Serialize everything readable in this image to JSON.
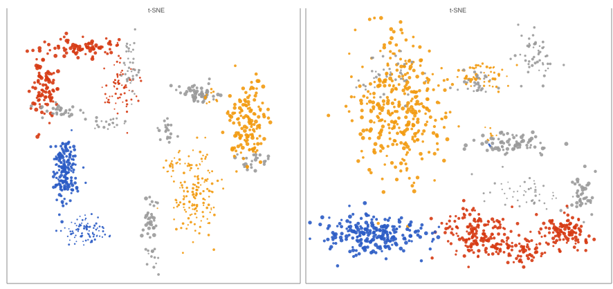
{
  "colors": {
    "red": "#d63a12",
    "blue": "#2a5bc4",
    "orange": "#f29a0f",
    "gray": "#9a9a9a"
  },
  "chart_data": [
    {
      "type": "scatter",
      "title": "t-SNE",
      "xlabel": "",
      "ylabel": "",
      "xlim": [
        0,
        100
      ],
      "ylim": [
        0,
        100
      ],
      "grid": false,
      "series": [
        {
          "color": "red",
          "clusters": [
            {
              "cx": 12,
              "cy": 72,
              "sx": 2.5,
              "sy": 6,
              "n": 90,
              "size": 2.2
            },
            {
              "cx": 24,
              "cy": 89,
              "sx": 7,
              "sy": 1.8,
              "n": 80,
              "size": 2.2
            },
            {
              "cx": 38,
              "cy": 74,
              "sx": 3,
              "sy": 6,
              "n": 70,
              "size": 1.3
            }
          ]
        },
        {
          "color": "gray",
          "clusters": [
            {
              "cx": 42,
              "cy": 82,
              "sx": 1.5,
              "sy": 6,
              "n": 40,
              "size": 1.4
            },
            {
              "cx": 18,
              "cy": 64,
              "sx": 4,
              "sy": 1.5,
              "n": 30,
              "size": 2
            },
            {
              "cx": 34,
              "cy": 60,
              "sx": 3,
              "sy": 1.5,
              "n": 20,
              "size": 1.6
            },
            {
              "cx": 66,
              "cy": 71,
              "sx": 4,
              "sy": 2,
              "n": 50,
              "size": 2.2
            },
            {
              "cx": 55,
              "cy": 57,
              "sx": 1.5,
              "sy": 3,
              "n": 20,
              "size": 1.8
            },
            {
              "cx": 49,
              "cy": 21,
              "sx": 1.5,
              "sy": 5,
              "n": 35,
              "size": 2.2
            },
            {
              "cx": 50,
              "cy": 7,
              "sx": 1,
              "sy": 2,
              "n": 10,
              "size": 1.6
            },
            {
              "cx": 84,
              "cy": 46,
              "sx": 3,
              "sy": 2,
              "n": 25,
              "size": 2.2
            }
          ]
        },
        {
          "color": "blue",
          "clusters": [
            {
              "cx": 19,
              "cy": 41,
              "sx": 2,
              "sy": 6,
              "n": 170,
              "size": 1.9
            },
            {
              "cx": 26,
              "cy": 18,
              "sx": 4,
              "sy": 3,
              "n": 90,
              "size": 1.2
            }
          ]
        },
        {
          "color": "orange",
          "clusters": [
            {
              "cx": 83,
              "cy": 60,
              "sx": 3.5,
              "sy": 7,
              "n": 140,
              "size": 2.2
            },
            {
              "cx": 64,
              "cy": 33,
              "sx": 4,
              "sy": 8,
              "n": 150,
              "size": 1.4
            },
            {
              "cx": 56,
              "cy": 44,
              "sx": 2,
              "sy": 2,
              "n": 20,
              "size": 1.2
            },
            {
              "cx": 69,
              "cy": 70,
              "sx": 1.5,
              "sy": 1.5,
              "n": 10,
              "size": 1.5
            }
          ]
        }
      ]
    },
    {
      "type": "scatter",
      "title": "t-SNE",
      "xlabel": "",
      "ylabel": "",
      "xlim": [
        0,
        100
      ],
      "ylim": [
        0,
        100
      ],
      "grid": false,
      "series": [
        {
          "color": "orange",
          "clusters": [
            {
              "cx": 30,
              "cy": 66,
              "sx": 7,
              "sy": 13,
              "n": 330,
              "size": 2.2
            },
            {
              "cx": 58,
              "cy": 78,
              "sx": 4,
              "sy": 3,
              "n": 60,
              "size": 1.6
            },
            {
              "cx": 60,
              "cy": 56,
              "sx": 2,
              "sy": 2,
              "n": 8,
              "size": 1.3
            }
          ]
        },
        {
          "color": "gray",
          "clusters": [
            {
              "cx": 76,
              "cy": 86,
              "sx": 3,
              "sy": 5,
              "n": 50,
              "size": 1.6
            },
            {
              "cx": 55,
              "cy": 75,
              "sx": 3,
              "sy": 2,
              "n": 30,
              "size": 1.8
            },
            {
              "cx": 68,
              "cy": 52,
              "sx": 7,
              "sy": 2,
              "n": 70,
              "size": 2.2
            },
            {
              "cx": 26,
              "cy": 78,
              "sx": 6,
              "sy": 5,
              "n": 40,
              "size": 1.5
            },
            {
              "cx": 74,
              "cy": 34,
              "sx": 6,
              "sy": 3,
              "n": 50,
              "size": 1.3
            },
            {
              "cx": 91,
              "cy": 31,
              "sx": 2,
              "sy": 4,
              "n": 40,
              "size": 2.2
            }
          ]
        },
        {
          "color": "red",
          "clusters": [
            {
              "cx": 55,
              "cy": 18,
              "sx": 6,
              "sy": 5,
              "n": 160,
              "size": 2
            },
            {
              "cx": 85,
              "cy": 18,
              "sx": 4,
              "sy": 4,
              "n": 110,
              "size": 2
            },
            {
              "cx": 69,
              "cy": 11,
              "sx": 5,
              "sy": 3,
              "n": 70,
              "size": 2
            }
          ]
        },
        {
          "color": "blue",
          "clusters": [
            {
              "cx": 22,
              "cy": 17,
              "sx": 9,
              "sy": 4,
              "n": 220,
              "size": 2.2
            },
            {
              "cx": 60,
              "cy": 51,
              "sx": 0.4,
              "sy": 0.4,
              "n": 2,
              "size": 1.6
            }
          ]
        }
      ]
    }
  ]
}
